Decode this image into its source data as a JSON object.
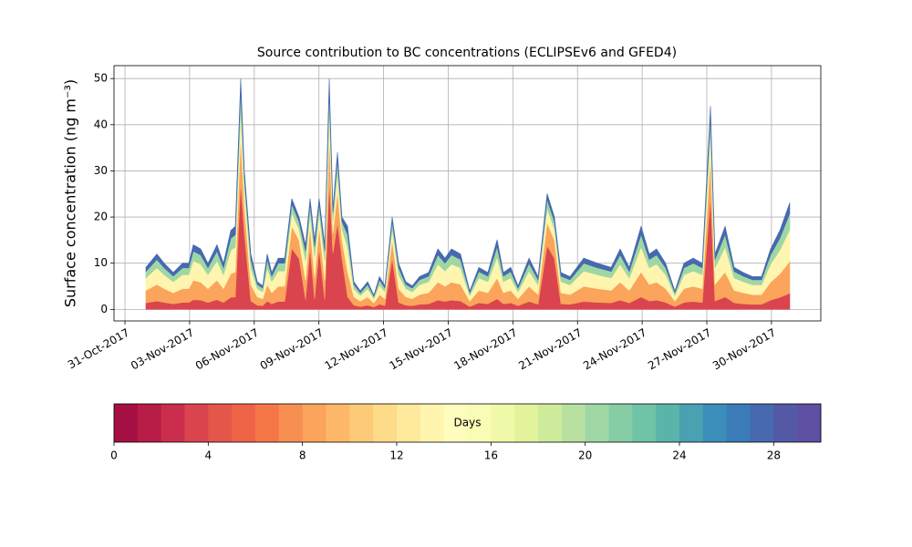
{
  "chart_data": {
    "type": "stacked_area",
    "title": "Source contribution to BC concentrations (ECLIPSEv6 and GFED4)",
    "y_label": "Surface concentration (ng m⁻³)",
    "grid": true,
    "xlim": [
      -0.51,
      32.29
    ],
    "ylim": [
      -2.5,
      52.8
    ],
    "xticks": [
      {
        "value": 0,
        "label": "31-Oct-2017"
      },
      {
        "value": 3,
        "label": "03-Nov-2017"
      },
      {
        "value": 6,
        "label": "06-Nov-2017"
      },
      {
        "value": 9,
        "label": "09-Nov-2017"
      },
      {
        "value": 12,
        "label": "12-Nov-2017"
      },
      {
        "value": 15,
        "label": "15-Nov-2017"
      },
      {
        "value": 18,
        "label": "18-Nov-2017"
      },
      {
        "value": 21,
        "label": "21-Nov-2017"
      },
      {
        "value": 24,
        "label": "24-Nov-2017"
      },
      {
        "value": 27,
        "label": "27-Nov-2017"
      },
      {
        "value": 30,
        "label": "30-Nov-2017"
      }
    ],
    "yticks": [
      0,
      10,
      20,
      30,
      40,
      50
    ],
    "x": [
      0.97,
      1.48,
      1.82,
      2.24,
      2.67,
      2.96,
      3.17,
      3.51,
      3.85,
      4.27,
      4.57,
      4.91,
      5.12,
      5.37,
      5.54,
      5.84,
      6.14,
      6.39,
      6.6,
      6.81,
      7.11,
      7.41,
      7.74,
      8.08,
      8.38,
      8.59,
      8.8,
      9.01,
      9.27,
      9.48,
      9.65,
      9.86,
      10.07,
      10.33,
      10.62,
      10.92,
      11.26,
      11.55,
      11.81,
      12.06,
      12.4,
      12.7,
      13.03,
      13.33,
      13.67,
      14.09,
      14.52,
      14.85,
      15.15,
      15.57,
      16.0,
      16.42,
      16.84,
      17.27,
      17.56,
      17.9,
      18.24,
      18.75,
      19.17,
      19.59,
      19.93,
      20.23,
      20.65,
      21.29,
      21.92,
      22.56,
      22.98,
      23.4,
      23.95,
      24.33,
      24.67,
      25.09,
      25.52,
      25.94,
      26.37,
      26.79,
      27.17,
      27.38,
      27.85,
      28.27,
      28.69,
      29.12,
      29.54,
      29.96,
      30.39,
      30.85
    ],
    "series": [
      {
        "color": "#d9444e",
        "values": [
          1.4,
          1.8,
          1.5,
          1.2,
          1.5,
          1.5,
          2.1,
          2,
          1.5,
          2.1,
          1.5,
          2.6,
          2.7,
          27.5,
          16.5,
          1.8,
          0.9,
          0.8,
          1.8,
          1.2,
          1.7,
          1.7,
          13.2,
          11,
          2.1,
          13.2,
          2.3,
          13.2,
          2.1,
          27.5,
          12.1,
          18.7,
          11,
          2.7,
          0.9,
          0.6,
          0.9,
          0.5,
          1.1,
          0.8,
          11,
          1.5,
          0.9,
          0.8,
          1.1,
          1.2,
          2,
          1.7,
          2,
          1.8,
          0.6,
          1.4,
          1.2,
          2.3,
          1.2,
          1.4,
          0.8,
          1.7,
          1.1,
          13.8,
          11,
          1.2,
          1.1,
          1.7,
          1.5,
          1.4,
          2,
          1.4,
          2.7,
          1.8,
          2,
          1.5,
          0.6,
          1.5,
          1.7,
          1.5,
          24.2,
          1.8,
          2.7,
          1.4,
          1.2,
          1.1,
          1.1,
          2,
          2.6,
          3.5
        ]
      },
      {
        "color": "#fba45c",
        "values": [
          2.7,
          3.6,
          3,
          2.4,
          3,
          3,
          4.2,
          3.9,
          3,
          4.2,
          3,
          5.1,
          5.4,
          10,
          6,
          3.6,
          1.8,
          1.5,
          3.6,
          2.4,
          3.3,
          3.3,
          4.8,
          4,
          4.2,
          4.8,
          4.5,
          4.8,
          4.2,
          10,
          4.4,
          6.8,
          4,
          5.4,
          1.8,
          1.2,
          1.8,
          0.9,
          2.1,
          1.5,
          4,
          3,
          1.8,
          1.5,
          2.1,
          2.4,
          3.9,
          3.3,
          3.9,
          3.6,
          1.2,
          2.7,
          2.4,
          4.5,
          2.4,
          2.7,
          1.5,
          3.3,
          2.1,
          5,
          4,
          2.4,
          2.1,
          3.3,
          3,
          2.7,
          3.9,
          2.7,
          5.4,
          3.6,
          3.9,
          3,
          1.2,
          3,
          3.3,
          3,
          8.8,
          3.6,
          5.4,
          2.7,
          2.4,
          2.1,
          2.1,
          3.9,
          5.1,
          6.9
        ]
      },
      {
        "color": "#fff5ae",
        "values": [
          2.7,
          3.6,
          3,
          2.4,
          3,
          3,
          4.2,
          3.9,
          3,
          4.2,
          3,
          5.1,
          5.4,
          6,
          3.6,
          3.6,
          1.8,
          1.5,
          3.6,
          2.4,
          3.3,
          3.3,
          2.9,
          2.4,
          4.2,
          2.9,
          4.5,
          2.9,
          4.2,
          6,
          2.6,
          4.1,
          2.4,
          5.4,
          1.8,
          1.2,
          1.8,
          0.9,
          2.1,
          1.5,
          2.4,
          3,
          1.8,
          1.5,
          2.1,
          2.4,
          3.9,
          3.3,
          3.9,
          3.6,
          1.2,
          2.7,
          2.4,
          4.5,
          2.4,
          2.7,
          1.5,
          3.3,
          2.1,
          3,
          2.4,
          2.4,
          2.1,
          3.3,
          3,
          2.7,
          3.9,
          2.7,
          5.4,
          3.6,
          3.9,
          3,
          1.2,
          3,
          3.3,
          3,
          5.3,
          3.6,
          5.4,
          2.7,
          2.4,
          2.1,
          2.1,
          3.9,
          5.1,
          6.9
        ]
      },
      {
        "color": "#9fd7a4",
        "values": [
          1.4,
          1.8,
          1.5,
          1.2,
          1.5,
          1.5,
          2.1,
          2,
          1.5,
          2.1,
          1.5,
          2.6,
          2.7,
          4,
          2.4,
          1.8,
          0.9,
          0.8,
          1.8,
          1.2,
          1.7,
          1.7,
          1.9,
          1.6,
          2.1,
          1.9,
          2.3,
          1.9,
          2.1,
          4,
          1.8,
          2.7,
          1.6,
          2.7,
          0.9,
          0.6,
          0.9,
          0.5,
          1.1,
          0.8,
          1.6,
          1.5,
          0.9,
          0.8,
          1.1,
          1.2,
          2,
          1.7,
          2,
          1.8,
          0.6,
          1.4,
          1.2,
          2.3,
          1.2,
          1.4,
          0.8,
          1.7,
          1.1,
          2,
          1.6,
          1.2,
          1.1,
          1.7,
          1.5,
          1.4,
          2,
          1.4,
          2.7,
          1.8,
          2,
          1.5,
          0.6,
          1.5,
          1.7,
          1.5,
          3.5,
          1.8,
          2.7,
          1.4,
          1.2,
          1.1,
          1.1,
          2,
          2.6,
          3.5
        ]
      },
      {
        "color": "#4669b0",
        "values": [
          0.9,
          1.2,
          1,
          0.8,
          1,
          1,
          1.4,
          1.3,
          1,
          1.4,
          1,
          1.7,
          1.8,
          2.5,
          1.5,
          1.2,
          0.6,
          0.5,
          1.2,
          0.8,
          1.1,
          1.1,
          1.2,
          1,
          1.4,
          1.2,
          1.5,
          1.2,
          1.4,
          2.5,
          1.1,
          1.7,
          1,
          1.8,
          0.6,
          0.4,
          0.6,
          0.3,
          0.7,
          0.5,
          1,
          1,
          0.6,
          0.5,
          0.7,
          0.8,
          1.3,
          1.1,
          1.3,
          1.2,
          0.4,
          0.9,
          0.8,
          1.5,
          0.8,
          0.9,
          0.5,
          1.1,
          0.7,
          1.3,
          1,
          0.8,
          0.7,
          1.1,
          1,
          0.9,
          1.3,
          0.9,
          1.8,
          1.2,
          1.3,
          1,
          0.4,
          1,
          1.1,
          1,
          2.2,
          1.2,
          1.8,
          0.9,
          0.8,
          0.7,
          0.7,
          1.3,
          1.7,
          2.3
        ]
      }
    ],
    "colorbar": {
      "label": "Days",
      "lim": [
        0,
        30
      ],
      "ticks": [
        0,
        4,
        8,
        12,
        16,
        20,
        24,
        28
      ],
      "colors": [
        "#a50f43",
        "#b81d48",
        "#cb2e4c",
        "#d9444e",
        "#e3574b",
        "#ed6446",
        "#f57748",
        "#f88f52",
        "#fba45c",
        "#fdb869",
        "#fdca78",
        "#fedb88",
        "#fee99c",
        "#fff5ae",
        "#fffdbd",
        "#f9fcb5",
        "#f0f9a7",
        "#e2f39b",
        "#cfec9d",
        "#b8e1a1",
        "#9fd7a4",
        "#86cda5",
        "#6fc3a6",
        "#5bb4aa",
        "#4aa1b1",
        "#3c8eba",
        "#3b7bb7",
        "#4669b0",
        "#5359a5",
        "#5e4fa2"
      ]
    }
  }
}
